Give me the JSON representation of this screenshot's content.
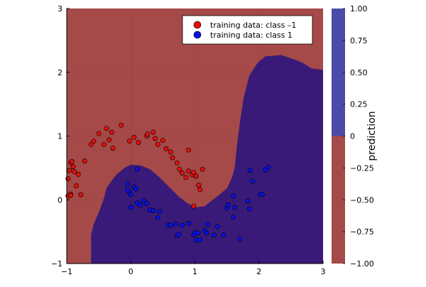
{
  "chart_data": {
    "type": "scatter",
    "title": "",
    "xlabel": "",
    "ylabel": "",
    "xlim": [
      -1,
      3
    ],
    "ylim": [
      -1,
      3
    ],
    "x_ticks": [
      -1,
      0,
      1,
      2,
      3
    ],
    "y_ticks": [
      -1,
      0,
      1,
      2,
      3
    ],
    "x_tick_labels": [
      "−1",
      "0",
      "1",
      "2",
      "3"
    ],
    "y_tick_labels": [
      "−1",
      "0",
      "1",
      "2",
      "3"
    ],
    "grid": true,
    "legend_position": "top-right",
    "background_region": {
      "description_value": -1,
      "color": "#A54A48"
    },
    "decision_region": {
      "value": 1,
      "color": "#3A1A78",
      "boundary": [
        [
          -0.62,
          -1.0
        ],
        [
          -0.62,
          -0.55
        ],
        [
          -0.58,
          -0.38
        ],
        [
          -0.5,
          -0.2
        ],
        [
          -0.42,
          0.02
        ],
        [
          -0.38,
          0.18
        ],
        [
          -0.3,
          0.3
        ],
        [
          -0.22,
          0.4
        ],
        [
          -0.1,
          0.5
        ],
        [
          0.0,
          0.55
        ],
        [
          0.15,
          0.54
        ],
        [
          0.3,
          0.48
        ],
        [
          0.45,
          0.35
        ],
        [
          0.6,
          0.2
        ],
        [
          0.75,
          0.05
        ],
        [
          0.88,
          -0.05
        ],
        [
          1.0,
          -0.12
        ],
        [
          1.15,
          -0.1
        ],
        [
          1.28,
          0.0
        ],
        [
          1.38,
          0.08
        ],
        [
          1.5,
          0.18
        ],
        [
          1.58,
          0.35
        ],
        [
          1.62,
          0.5
        ],
        [
          1.65,
          0.8
        ],
        [
          1.7,
          1.2
        ],
        [
          1.76,
          1.6
        ],
        [
          1.85,
          1.95
        ],
        [
          1.98,
          2.15
        ],
        [
          2.1,
          2.25
        ],
        [
          2.35,
          2.27
        ],
        [
          2.55,
          2.2
        ],
        [
          2.68,
          2.15
        ],
        [
          2.82,
          2.06
        ],
        [
          3.0,
          2.04
        ],
        [
          3.0,
          -1.0
        ]
      ]
    },
    "colorbar": {
      "label": "prediction",
      "ticks": [
        -1,
        -0.75,
        -0.5,
        -0.25,
        0,
        0.25,
        0.5,
        0.75,
        1
      ],
      "tick_labels": [
        "−1.00",
        "−0.75",
        "−0.50",
        "−0.25",
        "0",
        "0.25",
        "0.50",
        "0.75",
        "1.00"
      ],
      "range": [
        -1,
        1
      ],
      "low_color": "#A54A48",
      "high_color": "#4A4AA8"
    },
    "series": [
      {
        "name": "training data: class –1",
        "color": "#E0100E",
        "points": [
          [
            -0.98,
            0.33
          ],
          [
            -0.96,
            0.46
          ],
          [
            -0.94,
            0.58
          ],
          [
            -0.92,
            0.6
          ],
          [
            -0.9,
            0.52
          ],
          [
            -0.88,
            0.44
          ],
          [
            -0.85,
            0.22
          ],
          [
            -0.82,
            0.4
          ],
          [
            -0.78,
            0.08
          ],
          [
            -0.72,
            0.61
          ],
          [
            -0.94,
            0.09
          ],
          [
            -0.62,
            0.87
          ],
          [
            -0.58,
            0.92
          ],
          [
            -0.5,
            1.04
          ],
          [
            -0.42,
            0.87
          ],
          [
            -0.38,
            1.12
          ],
          [
            -0.34,
            0.94
          ],
          [
            -0.3,
            1.06
          ],
          [
            -0.28,
            0.81
          ],
          [
            -0.15,
            1.17
          ],
          [
            -0.02,
            0.92
          ],
          [
            0.05,
            0.98
          ],
          [
            0.12,
            0.9
          ],
          [
            0.25,
            1.0
          ],
          [
            0.26,
            1.03
          ],
          [
            0.35,
            1.06
          ],
          [
            0.38,
            0.96
          ],
          [
            0.42,
            0.87
          ],
          [
            0.5,
            0.93
          ],
          [
            0.55,
            0.8
          ],
          [
            0.62,
            0.75
          ],
          [
            0.65,
            0.66
          ],
          [
            0.72,
            0.58
          ],
          [
            0.76,
            0.48
          ],
          [
            0.8,
            0.42
          ],
          [
            0.86,
            0.35
          ],
          [
            0.9,
            0.45
          ],
          [
            0.96,
            0.39
          ],
          [
            0.9,
            0.78
          ],
          [
            0.98,
            0.43
          ],
          [
            1.02,
            0.37
          ],
          [
            1.12,
            0.48
          ],
          [
            1.06,
            0.23
          ],
          [
            1.08,
            0.16
          ],
          [
            0.98,
            -0.1
          ],
          [
            -0.98,
            0.06
          ],
          [
            -0.94,
            0.07
          ]
        ]
      },
      {
        "name": "training data: class 1",
        "color": "#0A12E2",
        "points": [
          [
            0.1,
            0.48
          ],
          [
            -0.05,
            0.25
          ],
          [
            -0.02,
            0.12
          ],
          [
            -0.05,
            0.15
          ],
          [
            0.0,
            0.08
          ],
          [
            0.05,
            0.2
          ],
          [
            0.08,
            0.17
          ],
          [
            0.1,
            -0.05
          ],
          [
            0.15,
            -0.08
          ],
          [
            0.2,
            -0.01
          ],
          [
            0.0,
            -0.12
          ],
          [
            0.25,
            -0.06
          ],
          [
            0.3,
            -0.16
          ],
          [
            0.35,
            -0.17
          ],
          [
            0.45,
            -0.18
          ],
          [
            0.42,
            -0.28
          ],
          [
            0.58,
            -0.39
          ],
          [
            0.62,
            -0.4
          ],
          [
            0.7,
            -0.38
          ],
          [
            0.72,
            -0.56
          ],
          [
            0.75,
            -0.54
          ],
          [
            0.8,
            -0.4
          ],
          [
            0.9,
            -0.37
          ],
          [
            0.98,
            -0.55
          ],
          [
            1.0,
            -0.52
          ],
          [
            1.02,
            -0.63
          ],
          [
            1.05,
            -0.52
          ],
          [
            1.08,
            -0.63
          ],
          [
            1.15,
            -0.48
          ],
          [
            1.18,
            -0.52
          ],
          [
            1.2,
            -0.38
          ],
          [
            1.3,
            -0.55
          ],
          [
            1.35,
            -0.42
          ],
          [
            1.45,
            -0.55
          ],
          [
            1.5,
            -0.13
          ],
          [
            1.52,
            -0.08
          ],
          [
            1.6,
            -0.27
          ],
          [
            1.6,
            0.06
          ],
          [
            1.62,
            -0.12
          ],
          [
            1.85,
            -0.14
          ],
          [
            1.82,
            -0.02
          ],
          [
            1.9,
            0.29
          ],
          [
            1.86,
            0.46
          ],
          [
            2.02,
            0.09
          ],
          [
            2.05,
            0.08
          ],
          [
            2.1,
            0.47
          ],
          [
            2.15,
            0.51
          ],
          [
            1.7,
            -0.62
          ]
        ]
      }
    ]
  }
}
